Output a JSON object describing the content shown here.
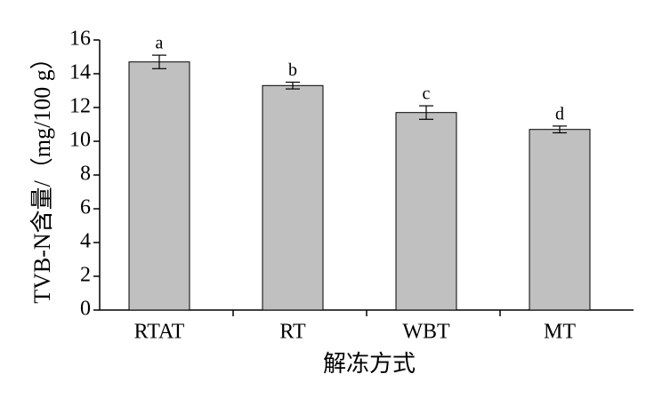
{
  "chart_data": {
    "type": "bar",
    "categories": [
      "RTAT",
      "RT",
      "WBT",
      "MT"
    ],
    "values": [
      14.7,
      13.3,
      11.7,
      10.7
    ],
    "errors": [
      0.4,
      0.2,
      0.4,
      0.2
    ],
    "annotations": [
      "a",
      "b",
      "c",
      "d"
    ],
    "color": "#c0c0c0",
    "x_label": "解冻方式",
    "y_label": "TVB-N含量/（mg/100 g）",
    "ylim": [
      0,
      16
    ],
    "yticks": [
      0,
      2,
      4,
      6,
      8,
      10,
      12,
      14,
      16
    ],
    "grid": false
  }
}
